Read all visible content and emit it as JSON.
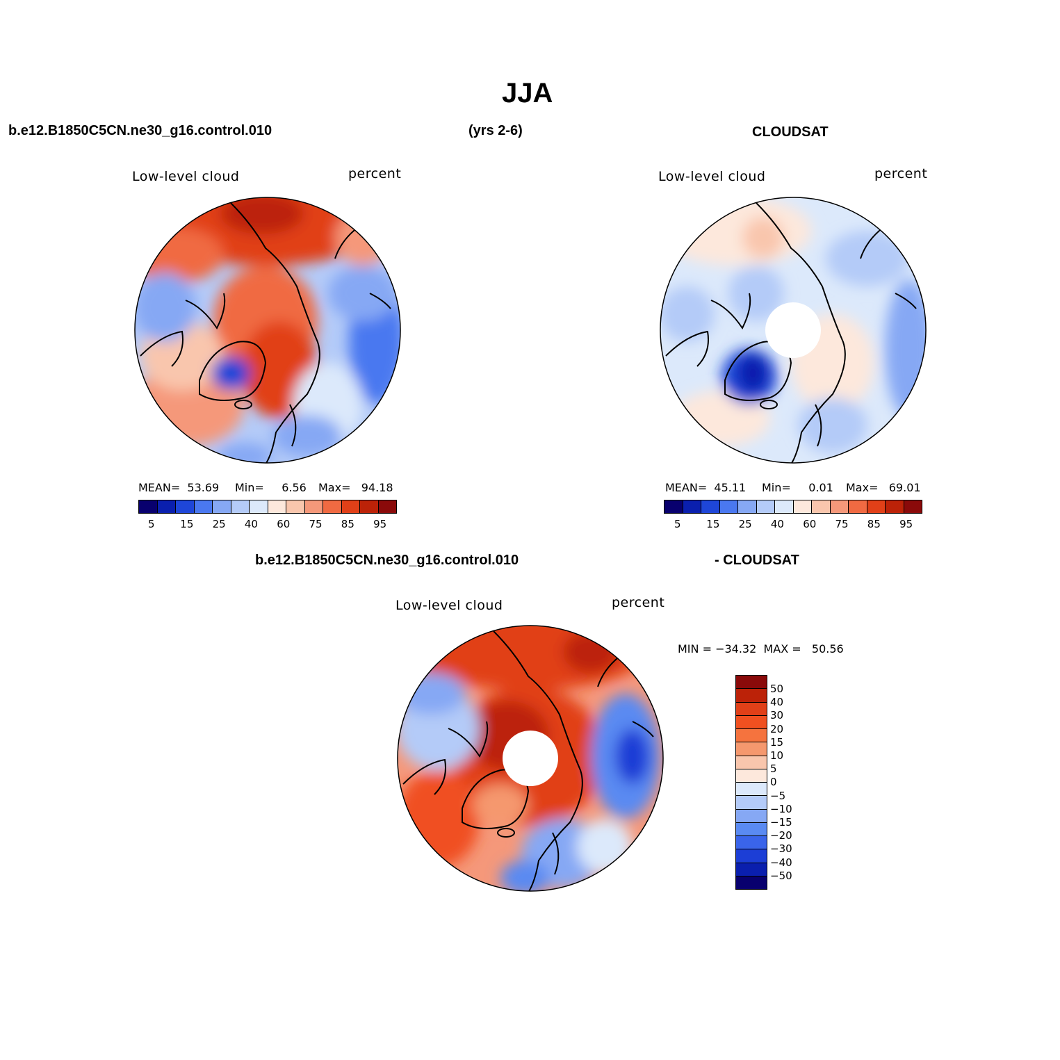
{
  "title": "JJA",
  "header": {
    "case_name": "b.e12.B1850C5CN.ne30_g16.control.010",
    "years": "(yrs 2-6)",
    "obs_name": "CLOUDSAT"
  },
  "diff_header": {
    "case_name": "b.e12.B1850C5CN.ne30_g16.control.010",
    "obs_name": "- CLOUDSAT"
  },
  "colors": {
    "cloud_scale": [
      "#08006e",
      "#0a1fae",
      "#1e46d8",
      "#4a78f0",
      "#86a8f4",
      "#b4cbf8",
      "#dce9fb",
      "#fde8dc",
      "#f9c6ad",
      "#f5987a",
      "#f06a42",
      "#e14018",
      "#bc2208",
      "#8a0a0a"
    ],
    "diff_scale": [
      "#8a0a0a",
      "#bc2208",
      "#e14018",
      "#f05020",
      "#f5733e",
      "#f5986e",
      "#f9c6ad",
      "#fde8dc",
      "#dce9fb",
      "#b4cbf8",
      "#86a8f4",
      "#5a8af2",
      "#3a64ea",
      "#1c3ed6",
      "#0a1fae",
      "#08006e"
    ],
    "outline": "#000000"
  },
  "panels": [
    {
      "id": "model",
      "variable": "Low-level cloud",
      "units": "percent",
      "mean_label": "MEAN=",
      "mean": "53.69",
      "min_label": "Min=",
      "min": "6.56",
      "max_label": "Max=",
      "max": "94.18",
      "colorbar_ticks": [
        "5",
        "15",
        "25",
        "40",
        "60",
        "75",
        "85",
        "95"
      ]
    },
    {
      "id": "obs",
      "variable": "Low-level cloud",
      "units": "percent",
      "mean_label": "MEAN=",
      "mean": "45.11",
      "min_label": "Min=",
      "min": "0.01",
      "max_label": "Max=",
      "max": "69.01",
      "colorbar_ticks": [
        "5",
        "15",
        "25",
        "40",
        "60",
        "75",
        "85",
        "95"
      ]
    },
    {
      "id": "diff",
      "variable": "Low-level cloud",
      "units": "percent",
      "minmax_text": "MIN = −34.32  MAX =   50.56",
      "colorbar_ticks": [
        "50",
        "40",
        "30",
        "20",
        "15",
        "10",
        "5",
        "0",
        "−5",
        "−10",
        "−15",
        "−20",
        "−30",
        "−40",
        "−50"
      ]
    }
  ]
}
